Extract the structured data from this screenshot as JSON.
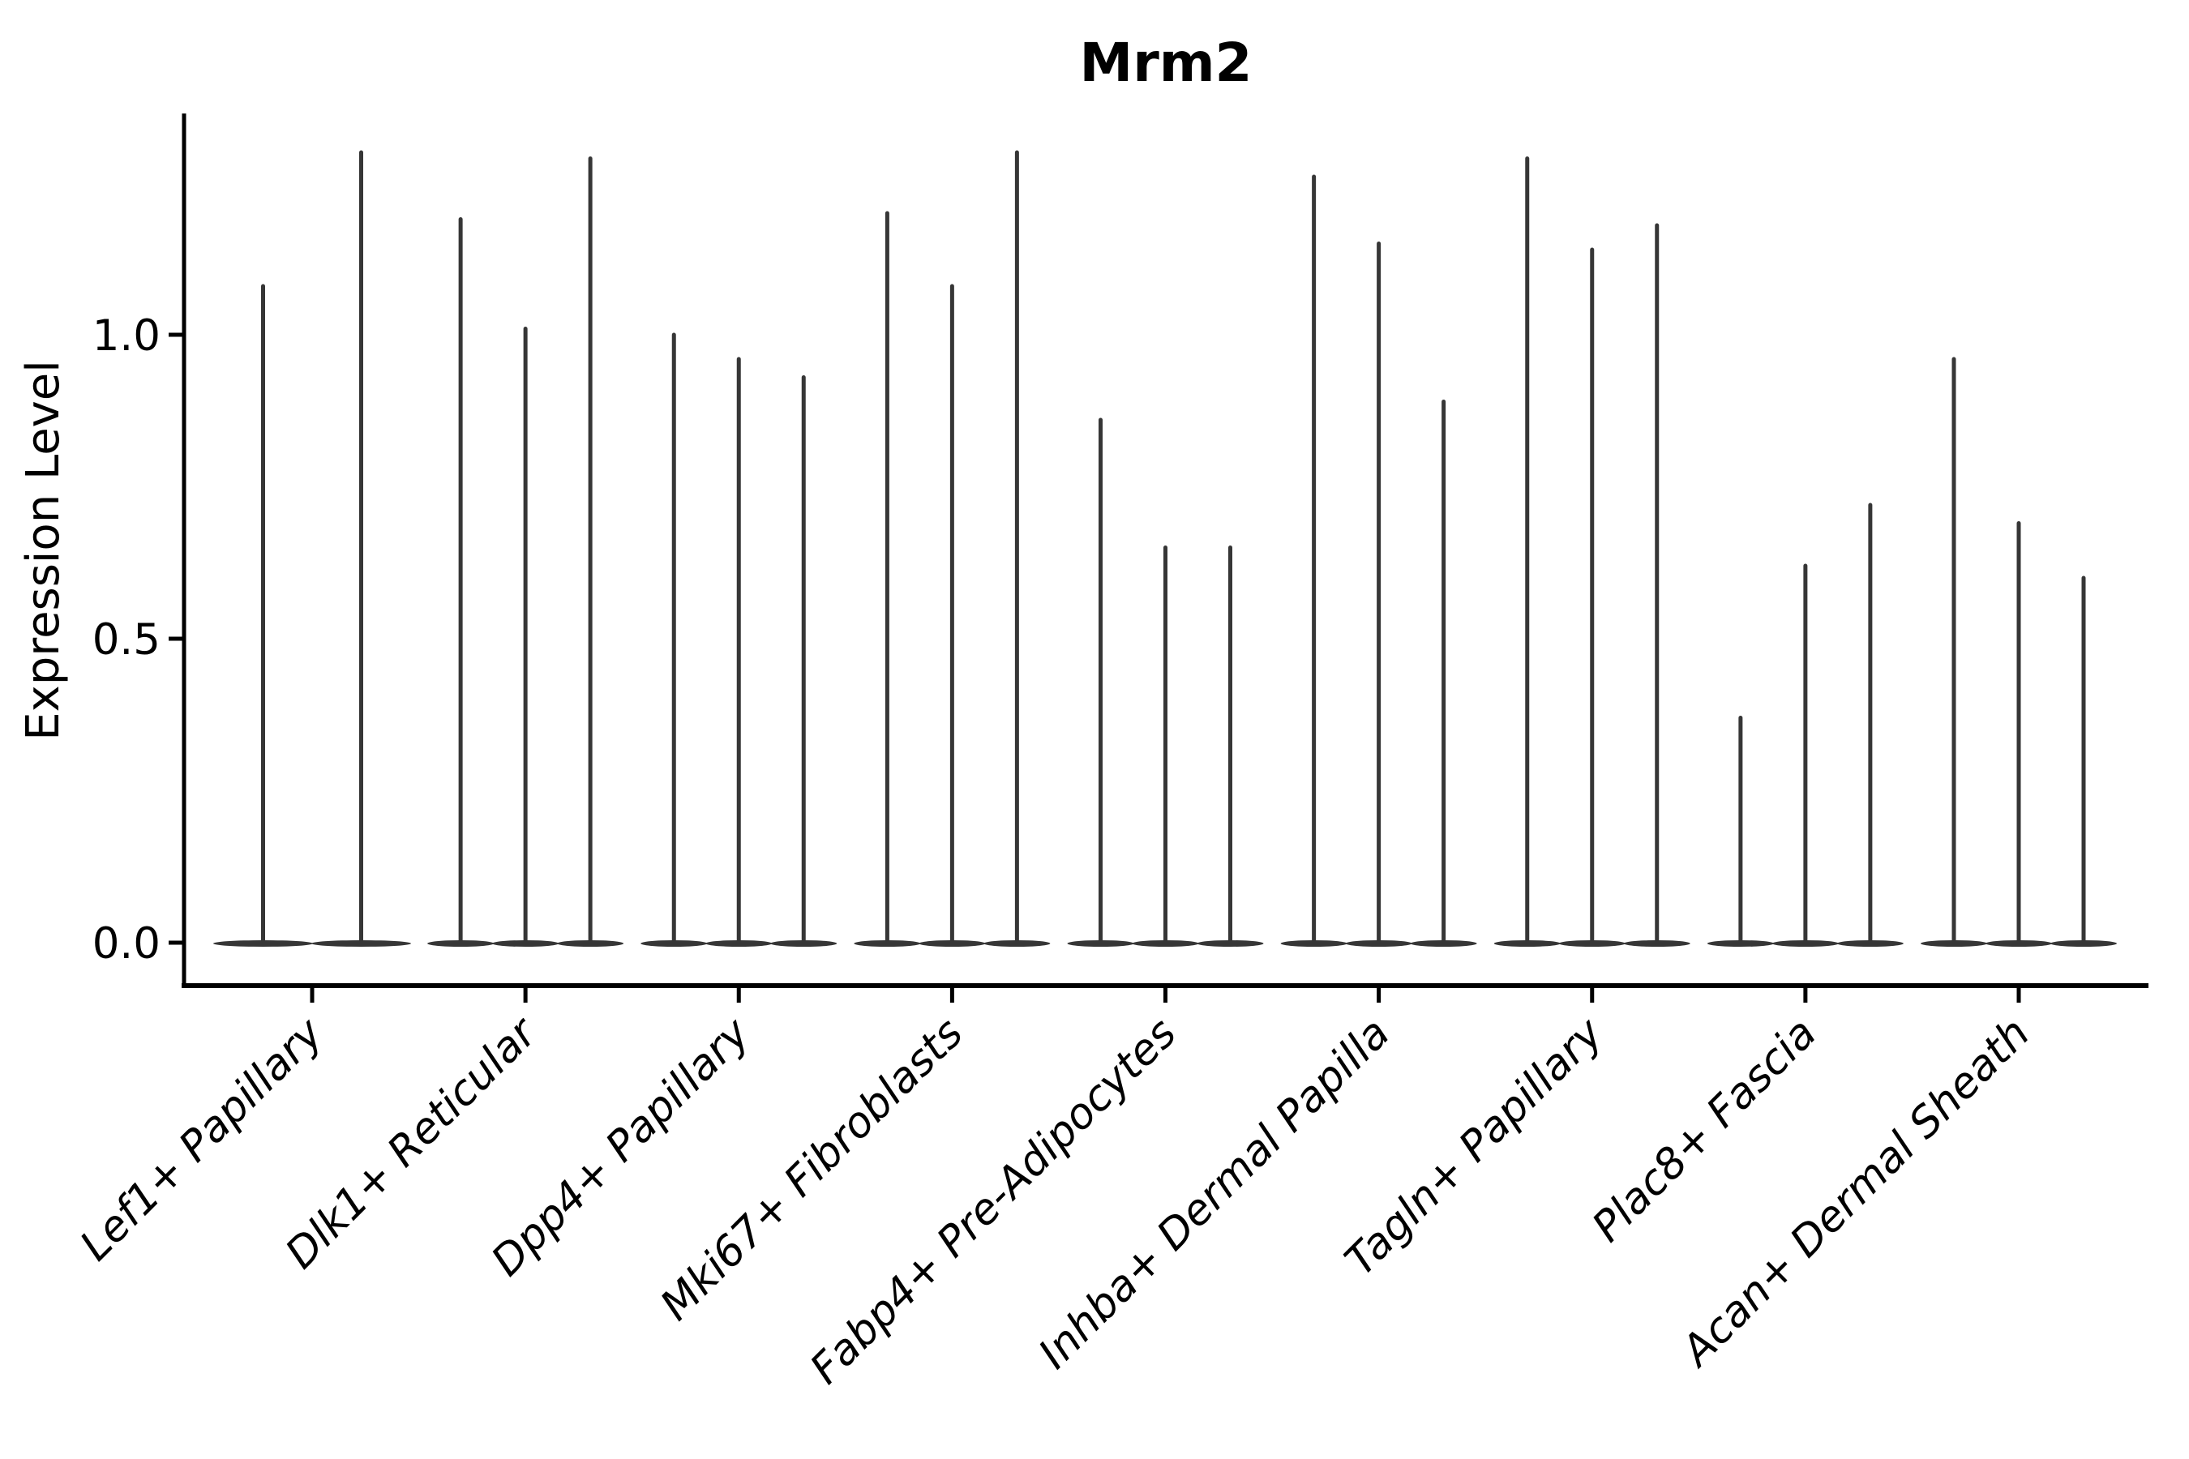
{
  "chart_data": {
    "type": "violin",
    "title": "Mrm2",
    "ylabel": "Expression Level",
    "xlabel": "",
    "ytick_labels": [
      "0.0",
      "0.5",
      "1.0"
    ],
    "ytick_values": [
      0.0,
      0.5,
      1.0
    ],
    "ylim": [
      -0.07,
      1.36
    ],
    "grid": false,
    "legend_position": "none",
    "baseline_value": 0.0,
    "categories": [
      {
        "label": "Lef1+ Papillary",
        "violin_max_values": [
          1.08,
          1.3
        ]
      },
      {
        "label": "Dlk1+ Reticular",
        "violin_max_values": [
          1.19,
          1.01,
          1.29
        ]
      },
      {
        "label": "Dpp4+ Papillary",
        "violin_max_values": [
          1.0,
          0.96,
          0.93
        ]
      },
      {
        "label": "Mki67+ Fibroblasts",
        "violin_max_values": [
          1.2,
          1.08,
          1.3
        ]
      },
      {
        "label": "Fabp4+ Pre-Adipocytes",
        "violin_max_values": [
          0.86,
          0.65,
          0.65
        ]
      },
      {
        "label": "Inhba+ Dermal Papilla",
        "violin_max_values": [
          1.26,
          1.15,
          0.89
        ]
      },
      {
        "label": "Tagln+ Papillary",
        "violin_max_values": [
          1.29,
          1.14,
          1.18
        ]
      },
      {
        "label": "Plac8+ Fascia",
        "violin_max_values": [
          0.37,
          0.62,
          0.72
        ]
      },
      {
        "label": "Acan+ Dermal Sheath",
        "violin_max_values": [
          0.96,
          0.69,
          0.6
        ]
      }
    ]
  },
  "colors": {
    "violin": "#363636",
    "axis": "#000000",
    "text": "#000000",
    "background": "#ffffff"
  }
}
